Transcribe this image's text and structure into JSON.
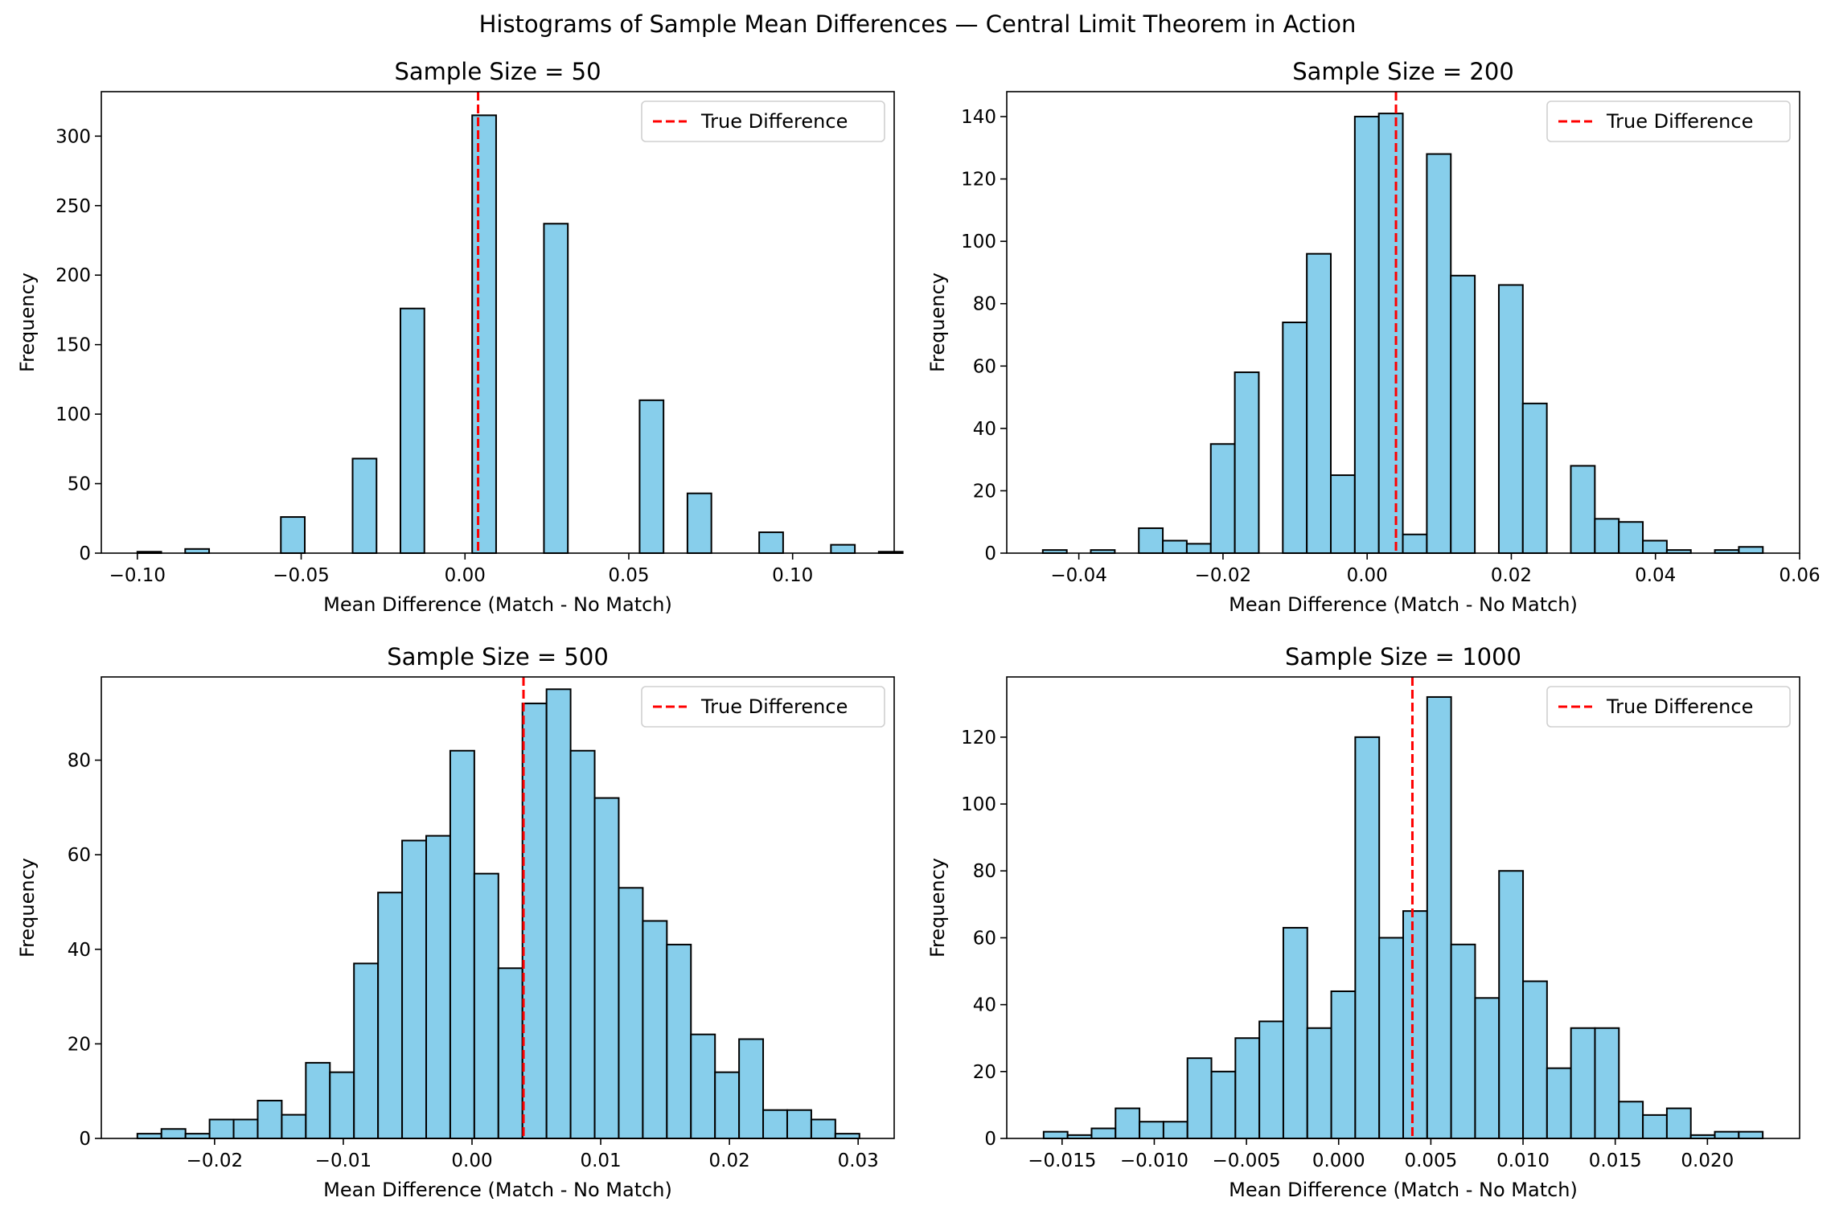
{
  "figure": {
    "suptitle": "Histograms of Sample Mean Differences — Central Limit Theorem in Action",
    "bar_color": "#87ceeb",
    "edge_color": "#000000",
    "true_line_color": "#ff0000"
  },
  "chart_data": [
    {
      "type": "bar",
      "title": "Sample Size = 50",
      "xlabel": "Mean Difference (Match - No Match)",
      "ylabel": "Frequency",
      "xlim": [
        -0.111,
        0.131
      ],
      "ylim": [
        0,
        332
      ],
      "xticks": [
        -0.1,
        -0.05,
        0.0,
        0.05,
        0.1
      ],
      "xtick_labels": [
        "−0.10",
        "−0.05",
        "0.00",
        "0.05",
        "0.10"
      ],
      "yticks": [
        0,
        50,
        100,
        150,
        200,
        250,
        300
      ],
      "ytick_labels": [
        "0",
        "50",
        "100",
        "150",
        "200",
        "250",
        "300"
      ],
      "bin_start": -0.1,
      "bin_width": 0.0073,
      "counts": [
        1,
        0,
        3,
        0,
        0,
        0,
        26,
        0,
        0,
        68,
        0,
        176,
        0,
        0,
        315,
        0,
        0,
        237,
        0,
        0,
        0,
        110,
        0,
        43,
        0,
        0,
        15,
        0,
        0,
        6,
        0,
        1
      ],
      "true_difference": 0.004,
      "legend": "True Difference",
      "legend_position": "top-right"
    },
    {
      "type": "bar",
      "title": "Sample Size = 200",
      "xlabel": "Mean Difference (Match - No Match)",
      "ylabel": "Frequency",
      "xlim": [
        -0.05,
        0.06
      ],
      "ylim": [
        0,
        148
      ],
      "xticks": [
        -0.04,
        -0.02,
        0.0,
        0.02,
        0.04,
        0.06
      ],
      "xtick_labels": [
        "−0.04",
        "−0.02",
        "0.00",
        "0.02",
        "0.04",
        "0.06"
      ],
      "yticks": [
        0,
        20,
        40,
        60,
        80,
        100,
        120,
        140
      ],
      "ytick_labels": [
        "0",
        "20",
        "40",
        "60",
        "80",
        "100",
        "120",
        "140"
      ],
      "bin_start": -0.045,
      "bin_width": 0.00333,
      "counts": [
        1,
        0,
        1,
        0,
        8,
        4,
        3,
        35,
        58,
        0,
        74,
        96,
        25,
        140,
        141,
        6,
        128,
        89,
        0,
        86,
        48,
        0,
        28,
        11,
        10,
        4,
        1,
        0,
        1,
        2
      ],
      "true_difference": 0.004,
      "legend": "True Difference",
      "legend_position": "top-right"
    },
    {
      "type": "bar",
      "title": "Sample Size = 500",
      "xlabel": "Mean Difference (Match - No Match)",
      "ylabel": "Frequency",
      "xlim": [
        -0.0288,
        0.0328
      ],
      "ylim": [
        0,
        97.6
      ],
      "xticks": [
        -0.02,
        -0.01,
        0.0,
        0.01,
        0.02,
        0.03
      ],
      "xtick_labels": [
        "−0.02",
        "−0.01",
        "0.00",
        "0.01",
        "0.02",
        "0.03"
      ],
      "yticks": [
        0,
        20,
        40,
        60,
        80
      ],
      "ytick_labels": [
        "0",
        "20",
        "40",
        "60",
        "80"
      ],
      "bin_start": -0.026,
      "bin_width": 0.00187,
      "counts": [
        1,
        2,
        1,
        4,
        4,
        8,
        5,
        16,
        14,
        37,
        52,
        63,
        64,
        82,
        56,
        36,
        92,
        95,
        82,
        72,
        53,
        46,
        41,
        22,
        14,
        21,
        6,
        6,
        4,
        1
      ],
      "true_difference": 0.004,
      "legend": "True Difference",
      "legend_position": "top-right"
    },
    {
      "type": "bar",
      "title": "Sample Size = 1000",
      "xlabel": "Mean Difference (Match - No Match)",
      "ylabel": "Frequency",
      "xlim": [
        -0.018,
        0.025
      ],
      "ylim": [
        0,
        138
      ],
      "xticks": [
        -0.015,
        -0.01,
        -0.005,
        0.0,
        0.005,
        0.01,
        0.015,
        0.02
      ],
      "xtick_labels": [
        "−0.015",
        "−0.010",
        "−0.005",
        "0.000",
        "0.005",
        "0.010",
        "0.015",
        "0.020"
      ],
      "yticks": [
        0,
        20,
        40,
        60,
        80,
        100,
        120
      ],
      "ytick_labels": [
        "0",
        "20",
        "40",
        "60",
        "80",
        "100",
        "120"
      ],
      "bin_start": -0.016,
      "bin_width": 0.0013,
      "counts": [
        2,
        1,
        3,
        9,
        5,
        5,
        24,
        20,
        30,
        35,
        63,
        33,
        44,
        120,
        60,
        68,
        132,
        58,
        42,
        80,
        47,
        21,
        33,
        33,
        11,
        7,
        9,
        1,
        2,
        2
      ],
      "true_difference": 0.004,
      "legend": "True Difference",
      "legend_position": "top-right"
    }
  ]
}
